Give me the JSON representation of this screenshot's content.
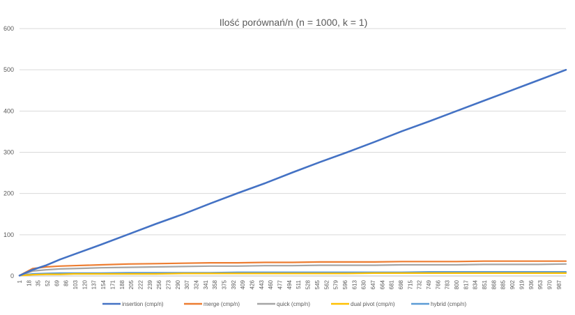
{
  "chart_data": {
    "type": "line",
    "title": "Ilość porównań/n (n = 1000, k = 1)",
    "xlabel": "",
    "ylabel": "",
    "xlim": [
      1,
      1000
    ],
    "ylim": [
      0,
      600
    ],
    "yticks": [
      0,
      100,
      200,
      300,
      400,
      500,
      600
    ],
    "xtick_labels": [
      1,
      18,
      35,
      52,
      69,
      86,
      103,
      120,
      137,
      154,
      171,
      188,
      205,
      222,
      239,
      256,
      273,
      290,
      307,
      324,
      341,
      358,
      375,
      392,
      409,
      426,
      443,
      460,
      477,
      494,
      511,
      528,
      545,
      562,
      579,
      596,
      613,
      630,
      647,
      664,
      681,
      698,
      715,
      732,
      749,
      766,
      783,
      800,
      817,
      834,
      851,
      868,
      885,
      902,
      919,
      936,
      953,
      970,
      987
    ],
    "grid": true,
    "legend_position": "bottom",
    "x": [
      1,
      25,
      50,
      75,
      100,
      150,
      200,
      250,
      300,
      350,
      400,
      450,
      500,
      550,
      600,
      650,
      700,
      750,
      800,
      850,
      900,
      950,
      1000
    ],
    "series": [
      {
        "name": "insertion (cmp/n)",
        "color": "#4472C4",
        "values": [
          1,
          15,
          26,
          40,
          52,
          76,
          101,
          126,
          150,
          176,
          201,
          225,
          251,
          276,
          300,
          325,
          351,
          375,
          400,
          425,
          450,
          475,
          500
        ]
      },
      {
        "name": "merge (cmp/n)",
        "color": "#ED7D31",
        "values": [
          1,
          18,
          22,
          24,
          25,
          27,
          29,
          30,
          31,
          32,
          32,
          33,
          33,
          34,
          34,
          34,
          35,
          35,
          35,
          36,
          36,
          36,
          36
        ]
      },
      {
        "name": "quick (cmp/n)",
        "color": "#A5A5A5",
        "values": [
          1,
          12,
          15,
          17,
          18,
          20,
          21,
          22,
          23,
          24,
          24,
          25,
          25,
          26,
          26,
          26,
          27,
          27,
          27,
          28,
          28,
          28,
          29
        ]
      },
      {
        "name": "dual pivot (cmp/n)",
        "color": "#FFC000",
        "values": [
          1,
          3,
          4,
          4,
          5,
          5,
          5,
          5,
          6,
          6,
          6,
          6,
          6,
          6,
          6,
          7,
          7,
          7,
          7,
          7,
          7,
          7,
          7
        ]
      },
      {
        "name": "hybrid (cmp/n)",
        "color": "#5B9BD5",
        "values": [
          1,
          5,
          6,
          7,
          7,
          7,
          8,
          8,
          8,
          8,
          9,
          9,
          9,
          9,
          9,
          9,
          9,
          10,
          10,
          10,
          10,
          10,
          10
        ]
      }
    ]
  }
}
